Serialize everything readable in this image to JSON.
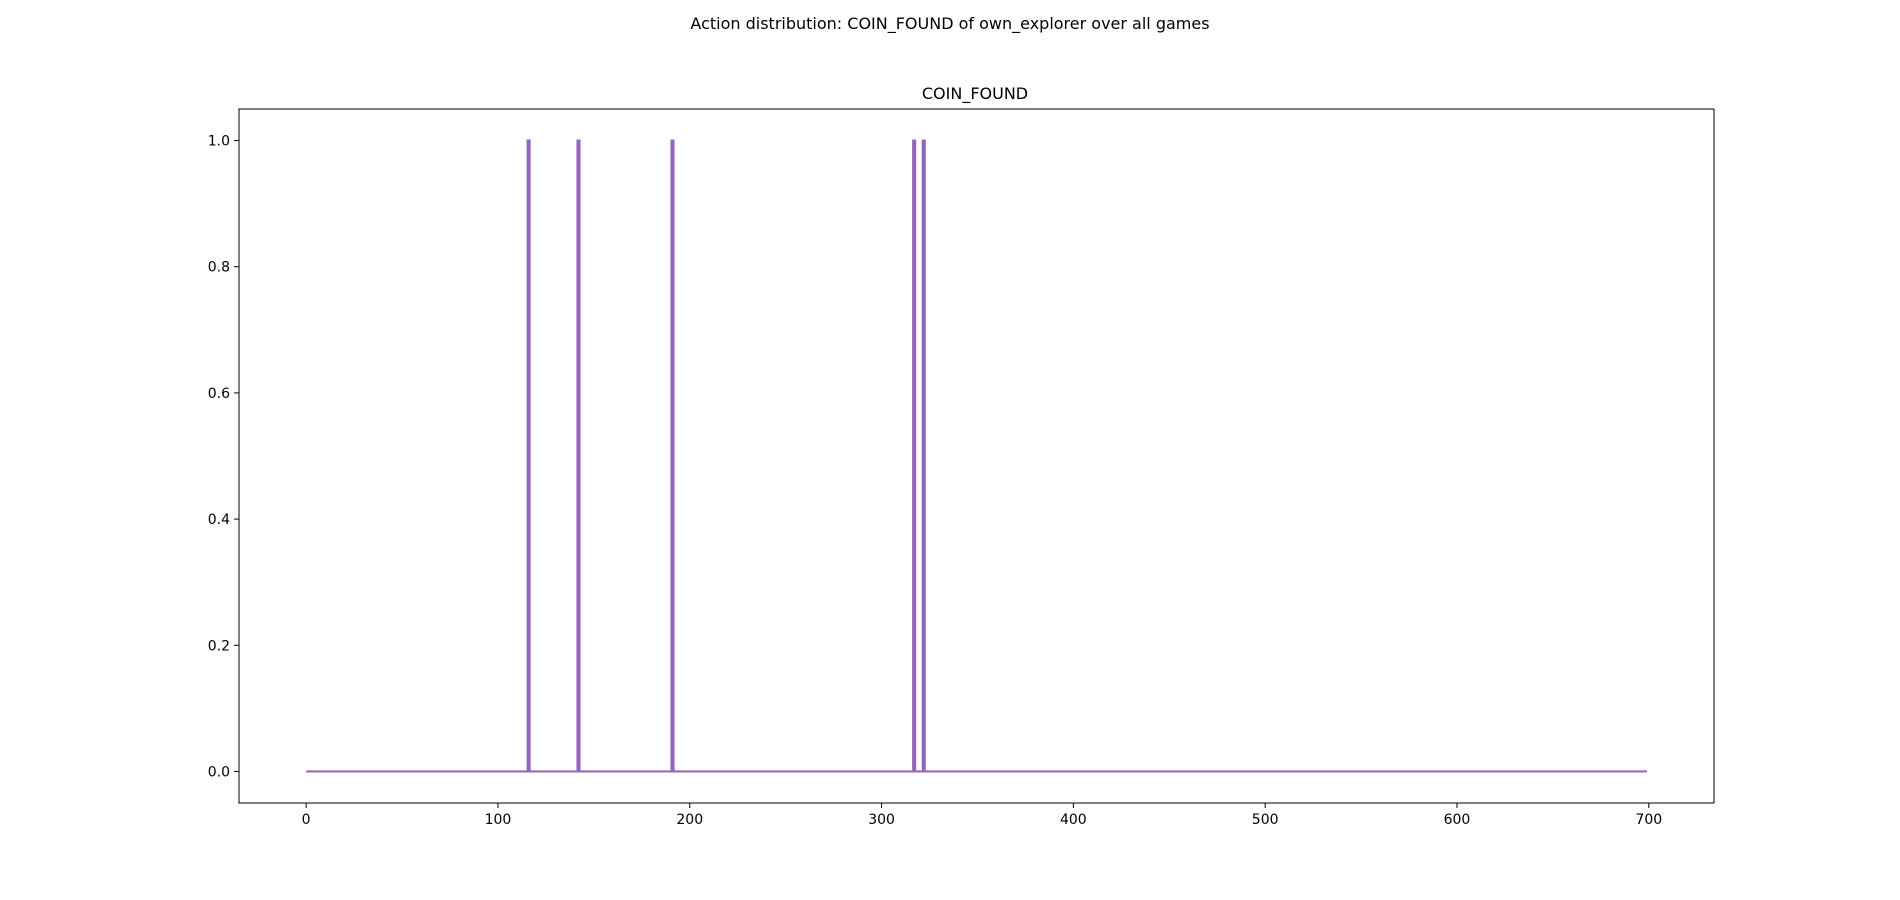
{
  "figure": {
    "suptitle": "Action distribution: COIN_FOUND of own_explorer over all games"
  },
  "chart_data": {
    "type": "line",
    "title": "COIN_FOUND",
    "xlabel": "",
    "ylabel": "",
    "xlim": [
      -35,
      734
    ],
    "ylim": [
      -0.05,
      1.05
    ],
    "xticks": [
      0,
      100,
      200,
      300,
      400,
      500,
      600,
      700
    ],
    "yticks": [
      0.0,
      0.2,
      0.4,
      0.6,
      0.8,
      1.0
    ],
    "xtick_labels": [
      "0",
      "100",
      "200",
      "300",
      "400",
      "500",
      "600",
      "700"
    ],
    "ytick_labels": [
      "0.0",
      "0.2",
      "0.4",
      "0.6",
      "0.8",
      "1.0"
    ],
    "grid": false,
    "legend": "none",
    "x_range": [
      0,
      699
    ],
    "baseline": 0,
    "series": [
      {
        "color": "#9467bd",
        "spikes": [
          {
            "x": 116,
            "y": 1.0
          },
          {
            "x": 142,
            "y": 1.0
          },
          {
            "x": 191,
            "y": 1.0
          },
          {
            "x": 317,
            "y": 1.0
          },
          {
            "x": 322,
            "y": 1.0
          }
        ]
      }
    ]
  }
}
